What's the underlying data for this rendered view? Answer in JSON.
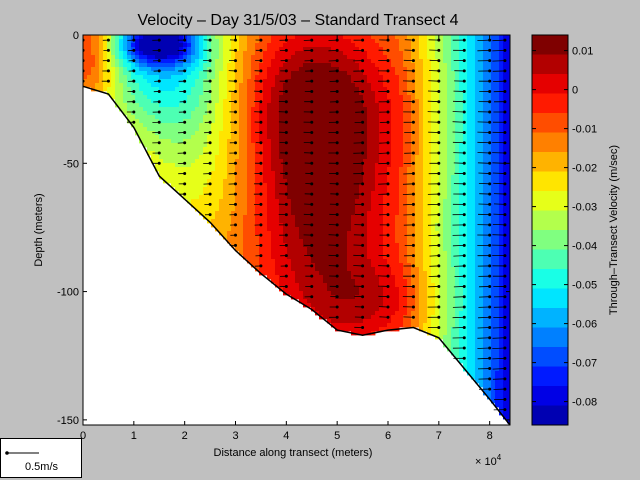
{
  "chart_data": {
    "type": "contour",
    "title": "Velocity – Day 31/5/03 – Standard Transect 4",
    "xlabel": "Distance along transect (meters)",
    "ylabel": "Depth (meters)",
    "x_multiplier_label": "× 10",
    "x_multiplier_exp": "4",
    "colorbar_label": "Through–Transect Velocity (m/sec)",
    "xlim": [
      0,
      8.4
    ],
    "ylim": [
      -152,
      0
    ],
    "x_ticks": [
      0,
      1,
      2,
      3,
      4,
      5,
      6,
      7,
      8
    ],
    "y_ticks": [
      0,
      -50,
      -100,
      -150
    ],
    "x_tick_labels": [
      "0",
      "1",
      "2",
      "3",
      "4",
      "5",
      "6",
      "7",
      "8"
    ],
    "y_tick_labels": [
      "0",
      "-50",
      "-100",
      "-150"
    ],
    "colorbar_range": [
      -0.086,
      0.014
    ],
    "colorbar_ticks": [
      0.01,
      0,
      -0.01,
      -0.02,
      -0.03,
      -0.04,
      -0.05,
      -0.06,
      -0.07,
      -0.08
    ],
    "colorbar_tick_labels": [
      "0.01",
      "0",
      "-0.01",
      "-0.02",
      "-0.03",
      "-0.04",
      "-0.05",
      "-0.06",
      "-0.07",
      "-0.08"
    ],
    "colorbar_levels": [
      "#7f0000",
      "#b20000",
      "#e50000",
      "#ff1a00",
      "#ff4d00",
      "#ff8000",
      "#ffb300",
      "#ffe500",
      "#e6ff19",
      "#b3ff4c",
      "#80ff80",
      "#4dffb3",
      "#19ffe6",
      "#00e5ff",
      "#00b3ff",
      "#0080ff",
      "#004dff",
      "#001aff",
      "#0000e5",
      "#0000b2"
    ],
    "bottom_profile": [
      {
        "x": 0,
        "depth": -20
      },
      {
        "x": 0.5,
        "depth": -23
      },
      {
        "x": 1,
        "depth": -36
      },
      {
        "x": 1.5,
        "depth": -55
      },
      {
        "x": 2,
        "depth": -64
      },
      {
        "x": 2.5,
        "depth": -73
      },
      {
        "x": 3,
        "depth": -84
      },
      {
        "x": 3.5,
        "depth": -93
      },
      {
        "x": 4,
        "depth": -101
      },
      {
        "x": 4.5,
        "depth": -107
      },
      {
        "x": 5,
        "depth": -115
      },
      {
        "x": 5.5,
        "depth": -117
      },
      {
        "x": 6,
        "depth": -115
      },
      {
        "x": 6.5,
        "depth": -114
      },
      {
        "x": 7,
        "depth": -118
      },
      {
        "x": 7.5,
        "depth": -130
      },
      {
        "x": 8,
        "depth": -142
      },
      {
        "x": 8.4,
        "depth": -152
      }
    ],
    "profile_x": [
      0,
      0.5,
      1,
      1.5,
      2,
      2.5,
      3,
      3.5,
      4,
      4.5,
      5,
      5.5,
      6,
      6.5,
      7,
      7.5,
      8,
      8.3
    ]
  },
  "scale_legend": {
    "label": "0.5m/s",
    "value": 0.5
  }
}
